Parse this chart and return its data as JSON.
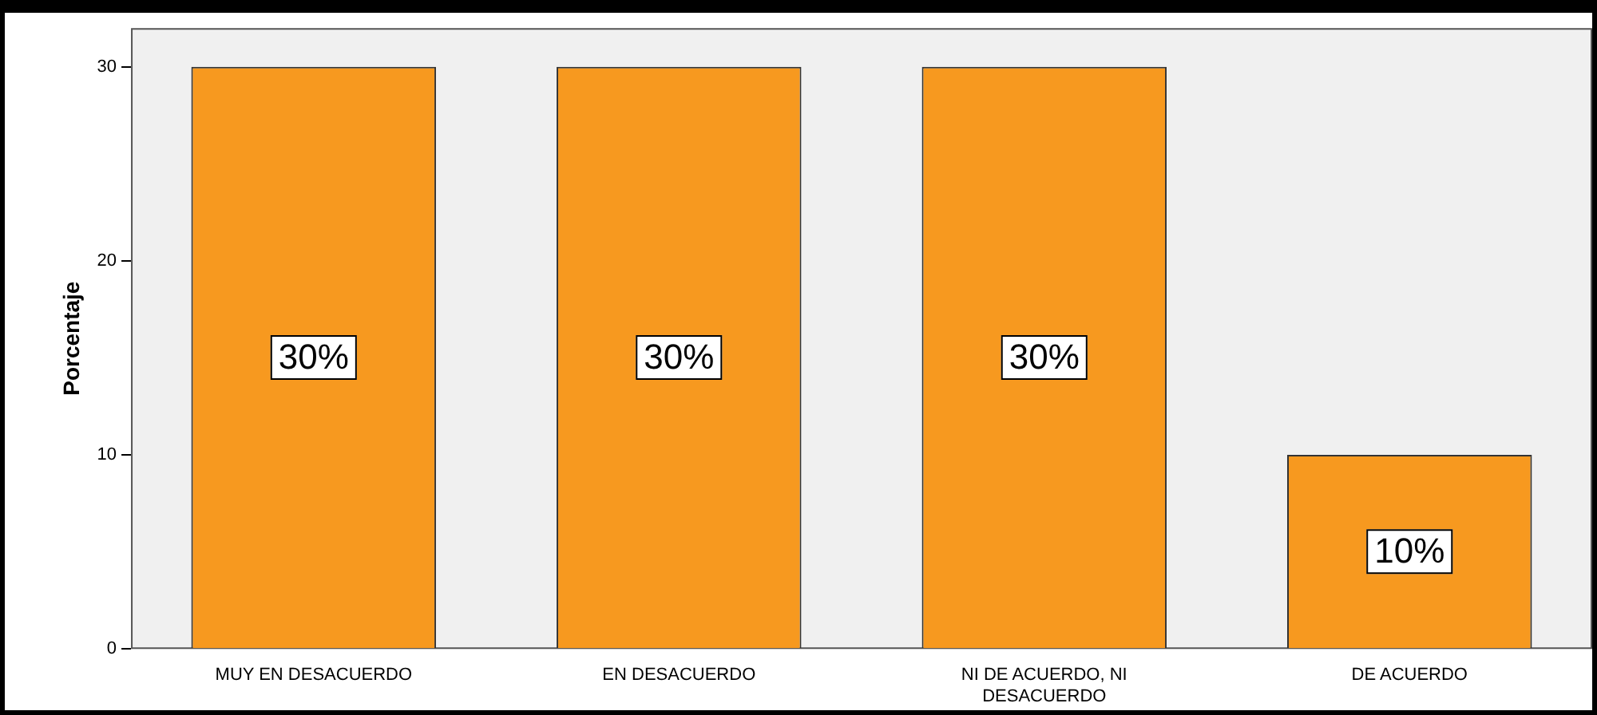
{
  "chart_data": {
    "type": "bar",
    "ylabel": "Porcentaje",
    "categories": [
      "MUY EN DESACUERDO",
      "EN DESACUERDO",
      "NI DE ACUERDO, NI DESACUERDO",
      "DE ACUERDO"
    ],
    "values": [
      30,
      30,
      30,
      10
    ],
    "color": "#f7991f",
    "value_labels": [
      "30%",
      "30%",
      "30%",
      "10%"
    ],
    "ylim": [
      0,
      32
    ],
    "yticks": [
      0,
      10,
      20,
      30
    ]
  }
}
